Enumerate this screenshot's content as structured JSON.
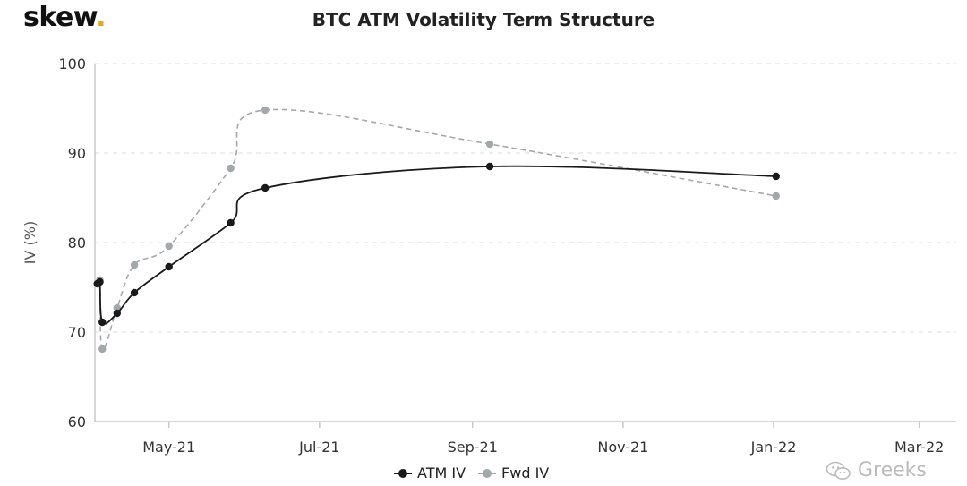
{
  "brand": {
    "text": "skew",
    "dot": "."
  },
  "watermark": {
    "text": "Greeks",
    "icon": "wechat-icon"
  },
  "colors": {
    "atm": "#1a1a1a",
    "fwd": "#a3a8ab",
    "grid": "#dcdcdc",
    "axis": "#c8c8c8"
  },
  "chart_data": {
    "type": "line",
    "title": "BTC ATM Volatility Term Structure",
    "xlabel": "",
    "ylabel": "IV (%)",
    "ylim": [
      60,
      100
    ],
    "yticks": [
      60,
      70,
      80,
      90,
      100
    ],
    "xlim_days": [
      0,
      349
    ],
    "xticks": [
      {
        "label": "May-21",
        "day": 30
      },
      {
        "label": "Jul-21",
        "day": 91
      },
      {
        "label": "Sep-21",
        "day": 153
      },
      {
        "label": "Nov-21",
        "day": 214
      },
      {
        "label": "Jan-22",
        "day": 275
      },
      {
        "label": "Mar-22",
        "day": 334
      }
    ],
    "series": [
      {
        "name": "ATM IV",
        "color": "#1a1a1a",
        "dash": false,
        "x": [
          1,
          2,
          3,
          9,
          16,
          30,
          55,
          69,
          160,
          276
        ],
        "values": [
          75.4,
          75.6,
          71.1,
          72.1,
          74.4,
          77.3,
          82.2,
          86.1,
          88.5,
          87.4
        ]
      },
      {
        "name": "Fwd IV",
        "color": "#a3a8ab",
        "dash": true,
        "x": [
          1,
          2,
          3,
          9,
          16,
          30,
          55,
          69,
          160,
          276
        ],
        "values": [
          75.4,
          75.8,
          68.1,
          72.7,
          77.5,
          79.6,
          88.3,
          94.8,
          91.0,
          85.2
        ]
      }
    ],
    "legend": "bottom-center"
  }
}
